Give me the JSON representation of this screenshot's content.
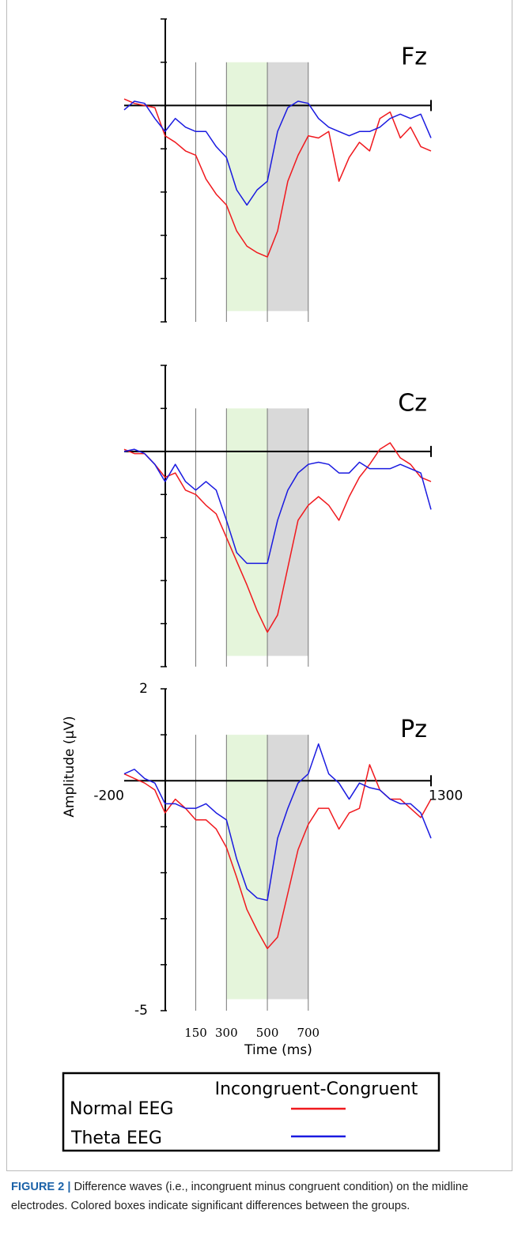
{
  "chart_data": [
    {
      "type": "line",
      "title": "Fz",
      "xlim": [
        -200,
        1300
      ],
      "ylim": [
        -5,
        2
      ],
      "xticks": [
        150,
        300,
        500,
        700
      ],
      "yticks": [
        -5,
        -4,
        -3,
        -2,
        -1,
        0,
        1,
        2
      ],
      "tick_labels": false,
      "shaded": [
        {
          "x": [
            300,
            500
          ],
          "y": [
            -4.75,
            1
          ],
          "color": "#e5f5db"
        },
        {
          "x": [
            500,
            700
          ],
          "y": [
            -4.75,
            1
          ],
          "color": "#d9d9d9"
        }
      ],
      "x": [
        -200,
        -150,
        -100,
        -50,
        0,
        50,
        100,
        150,
        200,
        250,
        300,
        350,
        400,
        450,
        500,
        550,
        600,
        650,
        700,
        750,
        800,
        850,
        900,
        950,
        1000,
        1050,
        1100,
        1150,
        1200,
        1250,
        1300
      ],
      "series": [
        {
          "name": "Normal EEG",
          "color": "#f0191e",
          "values": [
            0.15,
            0.05,
            0,
            -0.05,
            -0.7,
            -0.85,
            -1.05,
            -1.15,
            -1.7,
            -2.05,
            -2.3,
            -2.9,
            -3.25,
            -3.4,
            -3.5,
            -2.9,
            -1.75,
            -1.15,
            -0.7,
            -0.75,
            -0.6,
            -1.75,
            -1.2,
            -0.85,
            -1.05,
            -0.3,
            -0.15,
            -0.75,
            -0.5,
            -0.95,
            -1.05
          ]
        },
        {
          "name": "Theta EEG",
          "color": "#1a1ae0",
          "values": [
            -0.1,
            0.1,
            0.05,
            -0.3,
            -0.6,
            -0.3,
            -0.5,
            -0.6,
            -0.6,
            -0.95,
            -1.2,
            -1.95,
            -2.3,
            -1.95,
            -1.75,
            -0.6,
            -0.05,
            0.1,
            0.05,
            -0.3,
            -0.5,
            -0.6,
            -0.7,
            -0.6,
            -0.6,
            -0.5,
            -0.3,
            -0.2,
            -0.3,
            -0.2,
            -0.75
          ]
        }
      ]
    },
    {
      "type": "line",
      "title": "Cz",
      "xlim": [
        -200,
        1300
      ],
      "ylim": [
        -5,
        2
      ],
      "xticks": [
        150,
        300,
        500,
        700
      ],
      "yticks": [
        -5,
        -4,
        -3,
        -2,
        -1,
        0,
        1,
        2
      ],
      "tick_labels": false,
      "shaded": [
        {
          "x": [
            300,
            500
          ],
          "y": [
            -4.75,
            1
          ],
          "color": "#e5f5db"
        },
        {
          "x": [
            500,
            700
          ],
          "y": [
            -4.75,
            1
          ],
          "color": "#d9d9d9"
        }
      ],
      "x": [
        -200,
        -150,
        -100,
        -50,
        0,
        50,
        100,
        150,
        200,
        250,
        300,
        350,
        400,
        450,
        500,
        550,
        600,
        650,
        700,
        750,
        800,
        850,
        900,
        950,
        1000,
        1050,
        1100,
        1150,
        1200,
        1250,
        1300
      ],
      "series": [
        {
          "name": "Normal EEG",
          "color": "#f0191e",
          "values": [
            0.05,
            -0.05,
            -0.05,
            -0.3,
            -0.6,
            -0.5,
            -0.9,
            -1,
            -1.25,
            -1.45,
            -2,
            -2.55,
            -3.1,
            -3.7,
            -4.2,
            -3.8,
            -2.7,
            -1.6,
            -1.25,
            -1.05,
            -1.25,
            -1.6,
            -1.05,
            -0.6,
            -0.3,
            0.05,
            0.2,
            -0.15,
            -0.3,
            -0.6,
            -0.7
          ]
        },
        {
          "name": "Theta EEG",
          "color": "#1a1ae0",
          "values": [
            0,
            0.05,
            -0.05,
            -0.3,
            -0.7,
            -0.3,
            -0.7,
            -0.9,
            -0.7,
            -0.9,
            -1.6,
            -2.35,
            -2.6,
            -2.6,
            -2.6,
            -1.6,
            -0.9,
            -0.5,
            -0.3,
            -0.25,
            -0.3,
            -0.5,
            -0.5,
            -0.25,
            -0.4,
            -0.4,
            -0.4,
            -0.3,
            -0.4,
            -0.5,
            -1.35
          ]
        }
      ]
    },
    {
      "type": "line",
      "title": "Pz",
      "xlim": [
        -200,
        1300
      ],
      "ylim": [
        -5,
        2
      ],
      "xticks": [
        150,
        300,
        500,
        700
      ],
      "yticks": [
        -5,
        -4,
        -3,
        -2,
        -1,
        0,
        1,
        2
      ],
      "tick_labels": true,
      "xlabel": "Time (ms)",
      "ylabel": "Amplitude (µV)",
      "shaded": [
        {
          "x": [
            300,
            500
          ],
          "y": [
            -4.75,
            1
          ],
          "color": "#e5f5db"
        },
        {
          "x": [
            500,
            700
          ],
          "y": [
            -4.75,
            1
          ],
          "color": "#d9d9d9"
        }
      ],
      "x": [
        -200,
        -150,
        -100,
        -50,
        0,
        50,
        100,
        150,
        200,
        250,
        300,
        350,
        400,
        450,
        500,
        550,
        600,
        650,
        700,
        750,
        800,
        850,
        900,
        950,
        1000,
        1050,
        1100,
        1150,
        1200,
        1250,
        1300
      ],
      "series": [
        {
          "name": "Normal EEG",
          "color": "#f0191e",
          "values": [
            0.15,
            0.05,
            -0.05,
            -0.2,
            -0.7,
            -0.4,
            -0.6,
            -0.85,
            -0.85,
            -1.05,
            -1.45,
            -2.1,
            -2.8,
            -3.25,
            -3.65,
            -3.4,
            -2.45,
            -1.5,
            -0.95,
            -0.6,
            -0.6,
            -1.05,
            -0.7,
            -0.6,
            0.35,
            -0.2,
            -0.4,
            -0.4,
            -0.6,
            -0.8,
            -0.4
          ]
        },
        {
          "name": "Theta EEG",
          "color": "#1a1ae0",
          "values": [
            0.15,
            0.25,
            0.05,
            -0.05,
            -0.5,
            -0.5,
            -0.6,
            -0.6,
            -0.5,
            -0.7,
            -0.85,
            -1.7,
            -2.35,
            -2.55,
            -2.6,
            -1.25,
            -0.6,
            -0.05,
            0.15,
            0.8,
            0.15,
            -0.05,
            -0.4,
            -0.05,
            -0.15,
            -0.2,
            -0.4,
            -0.5,
            -0.5,
            -0.7,
            -1.25
          ]
        }
      ]
    }
  ],
  "legend_title": "Incongruent-Congruent",
  "caption": {
    "label": "FIGURE 2 |",
    "text": "Difference waves (i.e., incongruent minus congruent condition) on the midline electrodes. Colored boxes indicate significant differences between the groups."
  }
}
